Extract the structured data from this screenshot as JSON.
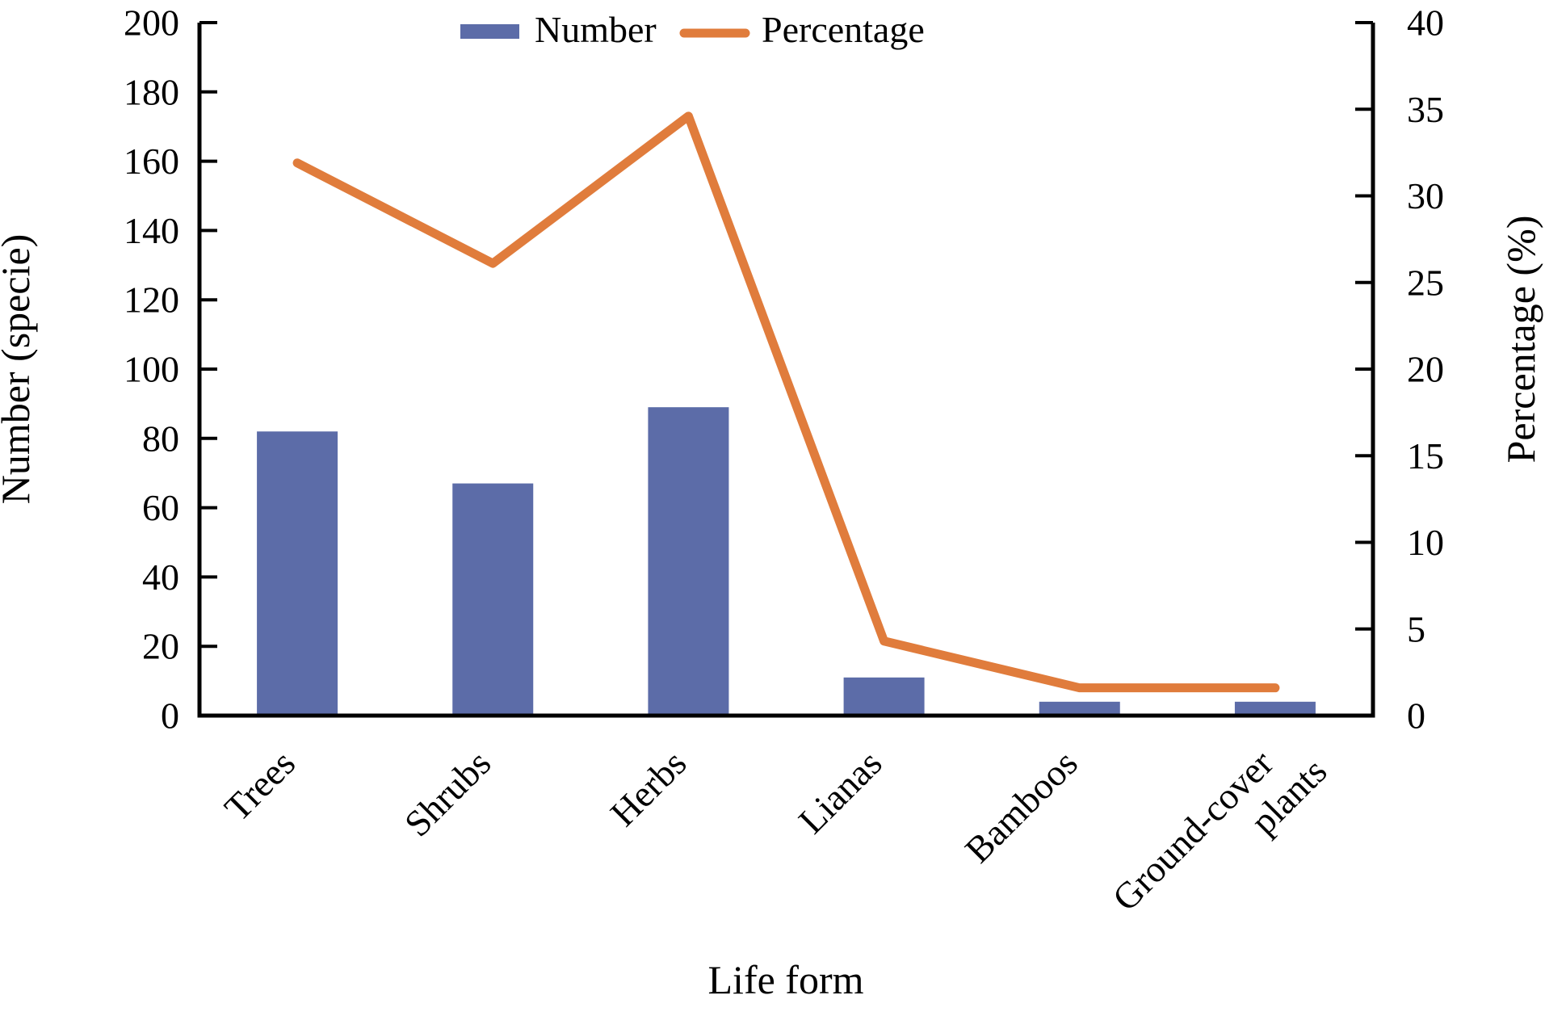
{
  "chart_data": {
    "type": "bar+line",
    "categories": [
      "Trees",
      "Shrubs",
      "Herbs",
      "Lianas",
      "Bamboos",
      "Ground-cover plants"
    ],
    "series": [
      {
        "name": "Number",
        "kind": "bar",
        "axis": "left",
        "color": "#5c6ca8",
        "values": [
          82,
          67,
          89,
          11,
          4,
          4
        ]
      },
      {
        "name": "Percentage",
        "kind": "line",
        "axis": "right",
        "color": "#e07c3c",
        "values": [
          31.9,
          26.1,
          34.6,
          4.3,
          1.6,
          1.6
        ]
      }
    ],
    "xlabel": "Life form",
    "ylabel_left": "Number (specie)",
    "ylabel_right": "Percentage (%)",
    "axis_left": {
      "min": 0,
      "max": 200,
      "step": 20
    },
    "axis_right": {
      "min": 0,
      "max": 40,
      "step": 5
    },
    "legend_position": "top",
    "grid": false,
    "axis_color": "#000000",
    "background": "#ffffff"
  }
}
